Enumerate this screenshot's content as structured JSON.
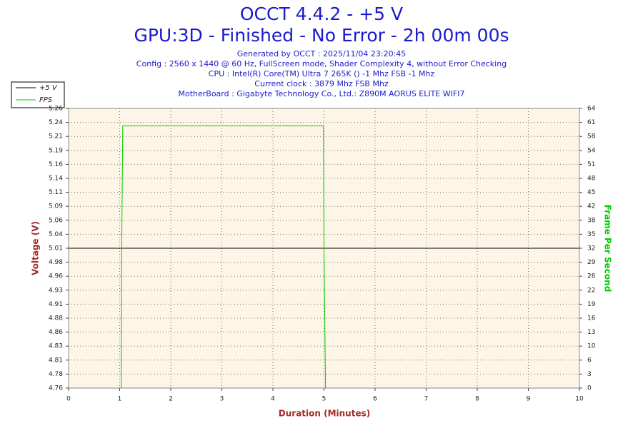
{
  "chart_data": {
    "type": "line",
    "title": "OCCT 4.4.2 - +5 V",
    "subtitle": "GPU:3D - Finished - No Error - 2h 00m 00s",
    "info": [
      "Generated by OCCT : 2025/11/04 23:20:45",
      "Config : 2560 x 1440 @ 60 Hz, FullScreen mode, Shader Complexity 4, without Error Checking",
      "CPU : Intel(R) Core(TM) Ultra 7 265K () -1 Mhz FSB -1 Mhz",
      "Current clock : 3879 Mhz FSB  Mhz",
      "MotherBoard : Gigabyte Technology Co., Ltd.: Z890M AORUS ELITE WIFI7"
    ],
    "x_label": "Duration (Minutes)",
    "y_label": "Voltage (V)",
    "y2_label": "Frame Per Second",
    "xlim": [
      0,
      10
    ],
    "xticks": [
      0,
      1,
      2,
      3,
      4,
      5,
      6,
      7,
      8,
      9,
      10
    ],
    "ylim": [
      4.76,
      5.26
    ],
    "yticks": [
      {
        "value": 4.76,
        "label": "4.76"
      },
      {
        "value": 4.785,
        "label": "4.78"
      },
      {
        "value": 4.81,
        "label": "4.81"
      },
      {
        "value": 4.835,
        "label": "4.83"
      },
      {
        "value": 4.86,
        "label": "4.86"
      },
      {
        "value": 4.885,
        "label": "4.88"
      },
      {
        "value": 4.91,
        "label": "4.91"
      },
      {
        "value": 4.935,
        "label": "4.93"
      },
      {
        "value": 4.96,
        "label": "4.96"
      },
      {
        "value": 4.985,
        "label": "4.98"
      },
      {
        "value": 5.01,
        "label": "5.01"
      },
      {
        "value": 5.035,
        "label": "5.04"
      },
      {
        "value": 5.06,
        "label": "5.06"
      },
      {
        "value": 5.085,
        "label": "5.09"
      },
      {
        "value": 5.11,
        "label": "5.11"
      },
      {
        "value": 5.135,
        "label": "5.14"
      },
      {
        "value": 5.16,
        "label": "5.16"
      },
      {
        "value": 5.185,
        "label": "5.19"
      },
      {
        "value": 5.21,
        "label": "5.21"
      },
      {
        "value": 5.235,
        "label": "5.24"
      },
      {
        "value": 5.26,
        "label": "5.26"
      }
    ],
    "y2lim": [
      0,
      64
    ],
    "y2ticks": [
      0,
      {
        "value": 3.2,
        "label": "3"
      },
      {
        "value": 6.4,
        "label": "6"
      },
      {
        "value": 9.6,
        "label": "10"
      },
      {
        "value": 12.8,
        "label": "13"
      },
      16,
      {
        "value": 19.2,
        "label": "19"
      },
      {
        "value": 22.4,
        "label": "22"
      },
      {
        "value": 25.6,
        "label": "26"
      },
      {
        "value": 28.8,
        "label": "29"
      },
      32,
      {
        "value": 35.2,
        "label": "35"
      },
      {
        "value": 38.4,
        "label": "38"
      },
      {
        "value": 41.6,
        "label": "42"
      },
      {
        "value": 44.8,
        "label": "45"
      },
      48,
      {
        "value": 51.2,
        "label": "51"
      },
      {
        "value": 54.4,
        "label": "54"
      },
      {
        "value": 57.6,
        "label": "58"
      },
      {
        "value": 60.8,
        "label": "61"
      },
      64
    ],
    "grid": true,
    "legend": "top-left",
    "series": [
      {
        "name": "+5 V",
        "color": "#000000",
        "x": [
          0,
          10
        ],
        "values": [
          5.01,
          5.01
        ]
      },
      {
        "name": "FPS",
        "color": "#00cc00",
        "axis": "y2",
        "x": [
          1.03,
          1.04,
          1.06,
          4.99,
          5.0,
          5.03
        ],
        "values": [
          0,
          32,
          60,
          60,
          32,
          0
        ]
      }
    ]
  }
}
